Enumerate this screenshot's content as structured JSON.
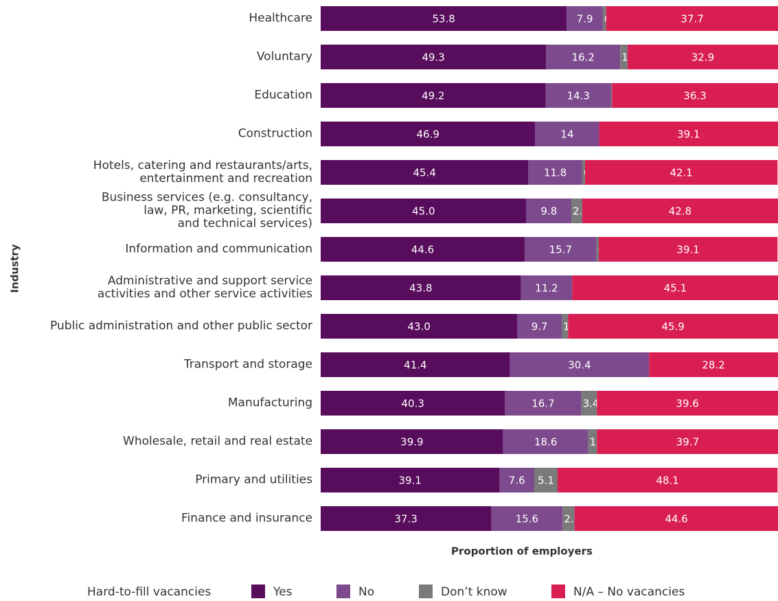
{
  "chart_data": {
    "type": "stacked-bar-horizontal",
    "y_label": "Industry",
    "x_label": "Proportion of employers",
    "legend_title": "Hard-to-fill vacancies",
    "xlim": [
      0,
      100
    ],
    "categories": [
      "Healthcare",
      "Voluntary",
      "Education",
      "Construction",
      "Hotels, catering and restaurants/arts,\nentertainment and recreation",
      "Business services (e.g. consultancy,\nlaw, PR, marketing, scientific\nand technical services)",
      "Information and communication",
      "Administrative and support service\nactivities and other service activities",
      "Public administration and other public sector",
      "Transport and storage",
      "Manufacturing",
      "Wholesale, retail and real estate",
      "Primary and utilities",
      "Finance and insurance"
    ],
    "series": [
      {
        "name": "Yes",
        "color": "#580c5c",
        "values": [
          53.8,
          49.3,
          49.2,
          46.9,
          45.4,
          45,
          44.6,
          43.8,
          43,
          41.4,
          40.3,
          39.9,
          39.1,
          37.3
        ],
        "value_labels": [
          "53.8",
          "49.3",
          "49.2",
          "46.9",
          "45.4",
          "45.0",
          "44.6",
          "43.8",
          "43.0",
          "41.4",
          "40.3",
          "39.9",
          "39.1",
          "37.3"
        ]
      },
      {
        "name": "No",
        "color": "#7d4a8d",
        "values": [
          7.9,
          16.2,
          14.3,
          14,
          11.8,
          9.8,
          15.7,
          11.2,
          9.7,
          30.4,
          16.7,
          18.6,
          7.6,
          15.6
        ]
      },
      {
        "name": "Don’t know",
        "color": "#7a7a7a",
        "values": [
          0.7,
          1.6,
          0.2,
          0,
          0.6,
          2.4,
          0.5,
          0,
          1.4,
          0,
          3.4,
          1.9,
          5.1,
          2.6
        ]
      },
      {
        "name": "N/A – No vacancies",
        "color": "#d91e54",
        "values": [
          37.7,
          32.9,
          36.3,
          39.1,
          42.1,
          42.8,
          39.1,
          45.1,
          45.9,
          28.2,
          39.6,
          39.7,
          48.1,
          44.6
        ]
      }
    ]
  }
}
